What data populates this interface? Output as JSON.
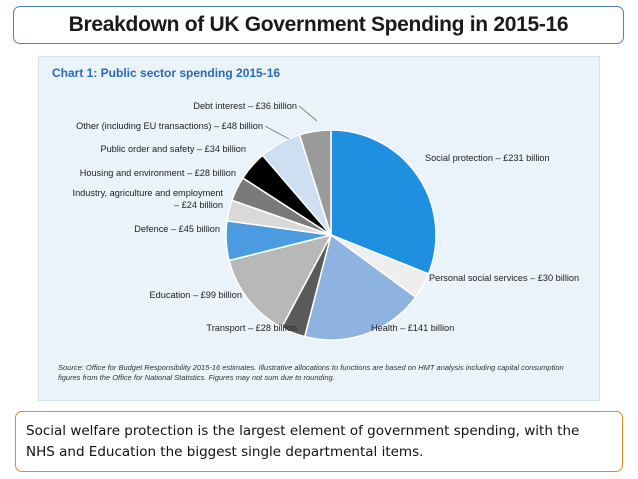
{
  "slide": {
    "title": "Breakdown of UK Government Spending in 2015-16",
    "caption": "Social welfare protection is the largest element of government spending, with the NHS and Education the biggest single departmental items."
  },
  "chart_data": {
    "type": "pie",
    "title": "Chart 1: Public sector spending 2015-16",
    "unit": "£ billion",
    "slices": [
      {
        "label": "Social protection – £231 billion",
        "value": 231,
        "color": "#1f8fe0"
      },
      {
        "label": "Personal social services – £30 billion",
        "value": 30,
        "color": "#eeeeee"
      },
      {
        "label": "Health – £141 billion",
        "value": 141,
        "color": "#8fb3e0"
      },
      {
        "label": "Transport – £28 billion",
        "value": 28,
        "color": "#5a5a5a"
      },
      {
        "label": "Education – £99 billion",
        "value": 99,
        "color": "#b8b8b8"
      },
      {
        "label": "Defence – £45 billion",
        "value": 45,
        "color": "#4a9be0"
      },
      {
        "label": "Industry, agriculture and employment – £24 billion",
        "value": 24,
        "color": "#d9d9d9"
      },
      {
        "label": "Housing and environment – £28 billion",
        "value": 28,
        "color": "#7a7a7a"
      },
      {
        "label": "Public order and safety – £34 billion",
        "value": 34,
        "color": "#000000"
      },
      {
        "label": "Other (including EU transactions) – £48 billion",
        "value": 48,
        "color": "#cfdff2"
      },
      {
        "label": "Debt interest – £36 billion",
        "value": 36,
        "color": "#9a9a9a"
      }
    ],
    "source": "Source: Office for Budget Responsibility 2015-16 estimates. Illustrative allocations to functions are based on HMT analysis including capital consumption figures from the Office for National Statistics. Figures may not sum due to rounding."
  }
}
